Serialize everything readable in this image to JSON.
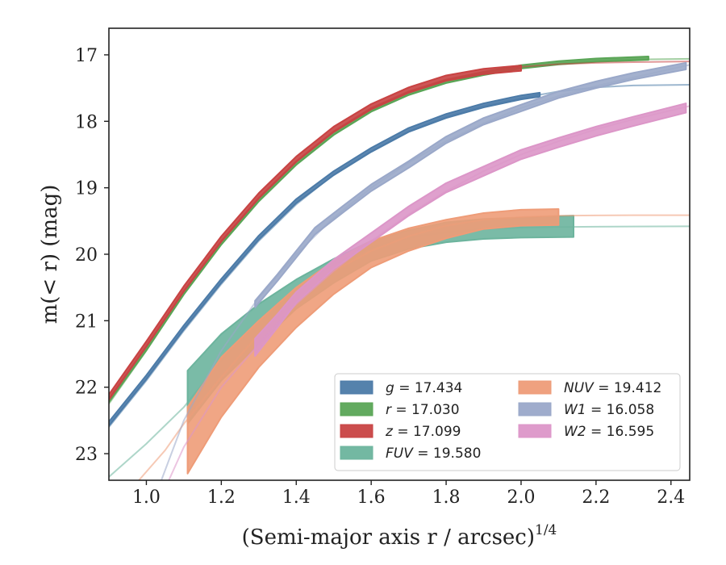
{
  "chart_data": {
    "type": "line",
    "xlabel": "(Semi-major axis r / arcsec)",
    "xlabel_exponent": "1/4",
    "ylabel": "m(< r) (mag)",
    "xlim": [
      0.9,
      2.45
    ],
    "ylim": [
      23.4,
      16.6
    ],
    "y_inverted": true,
    "xticks": [
      "1.0",
      "1.2",
      "1.4",
      "1.6",
      "1.8",
      "2.0",
      "2.2",
      "2.4"
    ],
    "yticks": [
      "17",
      "18",
      "19",
      "20",
      "21",
      "22",
      "23"
    ],
    "grid": false,
    "legend_position": "lower-right",
    "series": [
      {
        "name": "g = 17.434",
        "band": "g",
        "value": "17.434",
        "color": "#4c7ba8",
        "model": {
          "x": [
            0.9,
            1.0,
            1.1,
            1.2,
            1.3,
            1.4,
            1.5,
            1.6,
            1.7,
            1.8,
            1.9,
            2.0,
            2.1,
            2.2,
            2.3,
            2.45
          ],
          "y": [
            22.6,
            21.9,
            21.15,
            20.45,
            19.8,
            19.25,
            18.8,
            18.45,
            18.15,
            17.93,
            17.77,
            17.65,
            17.55,
            17.49,
            17.46,
            17.45
          ]
        },
        "data": {
          "x": [
            0.9,
            1.0,
            1.1,
            1.2,
            1.3,
            1.4,
            1.5,
            1.6,
            1.7,
            1.8,
            1.9,
            2.0,
            2.05
          ],
          "y": [
            22.55,
            21.85,
            21.1,
            20.4,
            19.75,
            19.2,
            18.78,
            18.43,
            18.13,
            17.92,
            17.76,
            17.64,
            17.6
          ],
          "halfwidth": [
            0.03,
            0.03,
            0.03,
            0.03,
            0.03,
            0.03,
            0.03,
            0.03,
            0.03,
            0.03,
            0.03,
            0.03,
            0.03
          ]
        }
      },
      {
        "name": "r = 17.030",
        "band": "r",
        "value": "17.030",
        "color": "#5aa556",
        "model": {
          "x": [
            0.9,
            1.0,
            1.1,
            1.2,
            1.3,
            1.4,
            1.5,
            1.6,
            1.7,
            1.8,
            1.9,
            2.0,
            2.1,
            2.2,
            2.3,
            2.45
          ],
          "y": [
            22.25,
            21.45,
            20.6,
            19.85,
            19.2,
            18.65,
            18.2,
            17.85,
            17.6,
            17.42,
            17.3,
            17.2,
            17.13,
            17.09,
            17.07,
            17.06
          ]
        },
        "data": {
          "x": [
            0.9,
            1.0,
            1.1,
            1.2,
            1.3,
            1.4,
            1.5,
            1.6,
            1.7,
            1.8,
            1.9,
            2.0,
            2.1,
            2.2,
            2.34
          ],
          "y": [
            22.2,
            21.42,
            20.58,
            19.83,
            19.18,
            18.63,
            18.18,
            17.83,
            17.58,
            17.4,
            17.28,
            17.18,
            17.12,
            17.08,
            17.05
          ],
          "halfwidth": [
            0.025,
            0.025,
            0.025,
            0.025,
            0.025,
            0.025,
            0.025,
            0.025,
            0.025,
            0.025,
            0.025,
            0.025,
            0.025,
            0.025,
            0.025
          ]
        }
      },
      {
        "name": "z = 17.099",
        "band": "z",
        "value": "17.099",
        "color": "#c84343",
        "model": {
          "x": [
            0.9,
            1.0,
            1.1,
            1.2,
            1.3,
            1.4,
            1.5,
            1.6,
            1.7,
            1.8,
            1.9,
            2.0,
            2.1,
            2.2,
            2.3,
            2.45
          ],
          "y": [
            22.18,
            21.38,
            20.55,
            19.8,
            19.15,
            18.6,
            18.15,
            17.8,
            17.55,
            17.37,
            17.26,
            17.18,
            17.14,
            17.12,
            17.11,
            17.1
          ]
        },
        "data": {
          "x": [
            0.9,
            1.0,
            1.1,
            1.2,
            1.3,
            1.4,
            1.5,
            1.6,
            1.7,
            1.8,
            1.9,
            2.0
          ],
          "y": [
            22.15,
            21.35,
            20.52,
            19.77,
            19.12,
            18.57,
            18.12,
            17.78,
            17.53,
            17.35,
            17.25,
            17.2
          ],
          "halfwidth": [
            0.04,
            0.04,
            0.04,
            0.04,
            0.04,
            0.04,
            0.04,
            0.04,
            0.04,
            0.04,
            0.04,
            0.04
          ]
        }
      },
      {
        "name": "FUV = 19.580",
        "band": "FUV",
        "value": "19.580",
        "color": "#6cb49d",
        "model": {
          "x": [
            0.9,
            1.0,
            1.1,
            1.2,
            1.3,
            1.4,
            1.5,
            1.6,
            1.7,
            1.8,
            1.9,
            2.0,
            2.1,
            2.2,
            2.3,
            2.45
          ],
          "y": [
            23.35,
            22.85,
            22.3,
            21.6,
            21.0,
            20.5,
            20.15,
            19.9,
            19.75,
            19.67,
            19.62,
            19.6,
            19.59,
            19.585,
            19.582,
            19.58
          ]
        },
        "data": {
          "x": [
            1.11,
            1.2,
            1.3,
            1.4,
            1.5,
            1.6,
            1.7,
            1.8,
            1.9,
            2.0,
            2.14
          ],
          "y": [
            22.15,
            21.55,
            21.05,
            20.6,
            20.25,
            19.95,
            19.78,
            19.67,
            19.62,
            19.6,
            19.58
          ],
          "halfwidth": [
            0.4,
            0.35,
            0.3,
            0.22,
            0.18,
            0.15,
            0.14,
            0.15,
            0.15,
            0.15,
            0.16
          ]
        }
      },
      {
        "name": "NUV = 19.412",
        "band": "NUV",
        "value": "19.412",
        "color": "#ee9c78",
        "model": {
          "x": [
            0.98,
            1.05,
            1.1,
            1.2,
            1.3,
            1.4,
            1.5,
            1.6,
            1.7,
            1.8,
            1.9,
            2.0,
            2.1,
            2.2,
            2.3,
            2.45
          ],
          "y": [
            23.4,
            22.95,
            22.55,
            21.85,
            21.2,
            20.65,
            20.25,
            19.95,
            19.73,
            19.57,
            19.48,
            19.44,
            19.42,
            19.415,
            19.413,
            19.412
          ]
        },
        "data": {
          "x": [
            1.11,
            1.2,
            1.3,
            1.4,
            1.5,
            1.6,
            1.7,
            1.8,
            1.9,
            2.0,
            2.1
          ],
          "y": [
            22.8,
            22.0,
            21.35,
            20.8,
            20.35,
            20.0,
            19.78,
            19.62,
            19.5,
            19.45,
            19.44
          ],
          "halfwidth": [
            0.5,
            0.45,
            0.35,
            0.3,
            0.25,
            0.2,
            0.17,
            0.14,
            0.12,
            0.12,
            0.12
          ]
        }
      },
      {
        "name": "W1 = 16.058",
        "band": "W1",
        "value": "16.058",
        "color": "#9aa8c9",
        "model": {
          "x": [
            1.0,
            1.1,
            1.2,
            1.3,
            1.4,
            1.5,
            1.6,
            1.7,
            1.8,
            1.9,
            2.0,
            2.1,
            2.2,
            2.3,
            2.45
          ],
          "y": [
            24.0,
            22.5,
            21.45,
            20.65,
            20.0,
            19.45,
            19.0,
            18.62,
            18.3,
            18.03,
            17.8,
            17.62,
            17.47,
            17.34,
            17.15
          ]
        },
        "data": {
          "x": [
            1.29,
            1.35,
            1.4,
            1.45,
            1.53,
            1.6,
            1.7,
            1.8,
            1.9,
            2.0,
            2.1,
            2.2,
            2.3,
            2.44
          ],
          "y": [
            20.75,
            20.35,
            20.0,
            19.65,
            19.3,
            19.0,
            18.65,
            18.28,
            18.0,
            17.8,
            17.6,
            17.45,
            17.32,
            17.17
          ],
          "halfwidth": [
            0.05,
            0.05,
            0.05,
            0.05,
            0.05,
            0.05,
            0.05,
            0.05,
            0.05,
            0.05,
            0.05,
            0.05,
            0.05,
            0.05
          ]
        }
      },
      {
        "name": "W2 = 16.595",
        "band": "W2",
        "value": "16.595",
        "color": "#dc96c8",
        "model": {
          "x": [
            1.06,
            1.1,
            1.2,
            1.3,
            1.4,
            1.5,
            1.6,
            1.7,
            1.8,
            1.9,
            2.0,
            2.1,
            2.2,
            2.3,
            2.45
          ],
          "y": [
            23.4,
            22.9,
            22.0,
            21.35,
            20.75,
            20.25,
            19.8,
            19.4,
            19.05,
            18.75,
            18.5,
            18.3,
            18.12,
            17.97,
            17.77
          ]
        },
        "data": {
          "x": [
            1.29,
            1.35,
            1.4,
            1.5,
            1.6,
            1.7,
            1.8,
            1.9,
            2.0,
            2.1,
            2.2,
            2.3,
            2.44
          ],
          "y": [
            21.4,
            21.0,
            20.65,
            20.15,
            19.75,
            19.35,
            19.0,
            18.75,
            18.5,
            18.32,
            18.15,
            18.0,
            17.8
          ],
          "halfwidth": [
            0.13,
            0.1,
            0.08,
            0.07,
            0.07,
            0.07,
            0.07,
            0.07,
            0.07,
            0.07,
            0.07,
            0.07,
            0.07
          ]
        }
      }
    ]
  }
}
